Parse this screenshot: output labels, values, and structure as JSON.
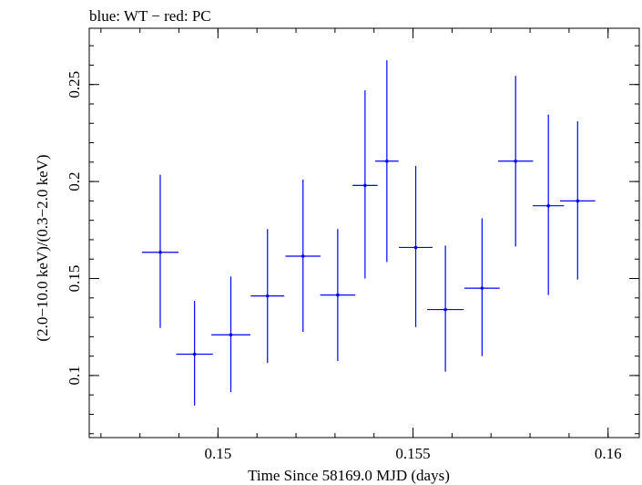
{
  "chart_data": {
    "type": "scatter",
    "title": "blue: WT − red: PC",
    "xlabel": "Time Since 58169.0 MJD (days)",
    "ylabel": "(2.0−10.0 keV)/(0.3−2.0 keV)",
    "xlim": [
      0.1467,
      0.1608
    ],
    "ylim": [
      0.068,
      0.279
    ],
    "x_major_ticks": [
      0.15,
      0.155,
      0.16
    ],
    "x_tick_labels": [
      "0.15",
      "0.155",
      "0.16"
    ],
    "x_minor_step": 0.001,
    "y_major_ticks": [
      0.1,
      0.15,
      0.2,
      0.25
    ],
    "y_tick_labels": [
      "0.1",
      "0.15",
      "0.2",
      "0.25"
    ],
    "y_minor_step": 0.01,
    "grid": false,
    "series": [
      {
        "color": "#0000ff",
        "points": [
          {
            "x": 0.14852,
            "xerr": 0.00047,
            "y": 0.1635,
            "ylo": 0.1245,
            "yhi": 0.2035
          },
          {
            "x": 0.1494,
            "xerr": 0.00047,
            "y": 0.111,
            "ylo": 0.0845,
            "yhi": 0.1385
          },
          {
            "x": 0.15033,
            "xerr": 0.0005,
            "y": 0.121,
            "ylo": 0.0915,
            "yhi": 0.151
          },
          {
            "x": 0.15127,
            "xerr": 0.00043,
            "y": 0.141,
            "ylo": 0.1065,
            "yhi": 0.1755
          },
          {
            "x": 0.15218,
            "xerr": 0.00045,
            "y": 0.1615,
            "ylo": 0.1225,
            "yhi": 0.201
          },
          {
            "x": 0.15307,
            "xerr": 0.00045,
            "y": 0.1415,
            "ylo": 0.1075,
            "yhi": 0.1755
          },
          {
            "x": 0.15377,
            "xerr": 0.00032,
            "y": 0.198,
            "ylo": 0.15,
            "yhi": 0.247
          },
          {
            "x": 0.15433,
            "xerr": 0.0003,
            "y": 0.2105,
            "ylo": 0.1585,
            "yhi": 0.2625
          },
          {
            "x": 0.15507,
            "xerr": 0.00043,
            "y": 0.166,
            "ylo": 0.125,
            "yhi": 0.208
          },
          {
            "x": 0.15583,
            "xerr": 0.00047,
            "y": 0.134,
            "ylo": 0.102,
            "yhi": 0.167
          },
          {
            "x": 0.15677,
            "xerr": 0.00045,
            "y": 0.145,
            "ylo": 0.11,
            "yhi": 0.181
          },
          {
            "x": 0.15763,
            "xerr": 0.00045,
            "y": 0.2105,
            "ylo": 0.1665,
            "yhi": 0.2545
          },
          {
            "x": 0.15847,
            "xerr": 0.0004,
            "y": 0.1875,
            "ylo": 0.1415,
            "yhi": 0.2345
          },
          {
            "x": 0.15922,
            "xerr": 0.00045,
            "y": 0.19,
            "ylo": 0.1495,
            "yhi": 0.231
          }
        ]
      }
    ]
  }
}
